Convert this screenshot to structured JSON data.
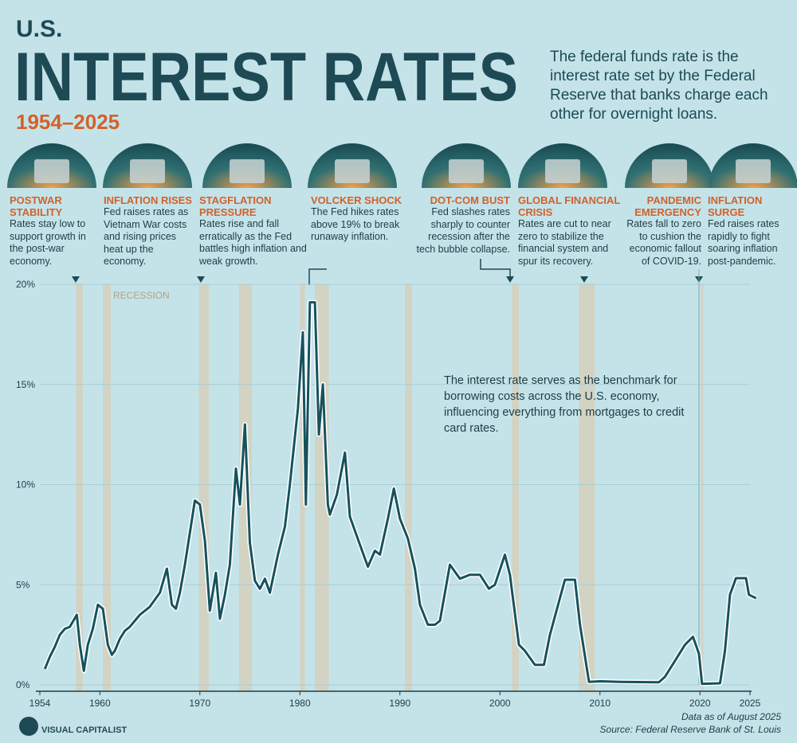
{
  "header": {
    "kicker": "U.S.",
    "title": "INTEREST RATES",
    "period": "1954–2025",
    "description": "The federal funds rate is the interest rate set by the Federal Reserve that banks charge each other for overnight loans."
  },
  "events": [
    {
      "title": "POSTWAR STABILITY",
      "text": "Rates stay low to support growth in the post-war economy."
    },
    {
      "title": "INFLATION RISES",
      "text": "Fed raises rates as Vietnam War costs and rising prices heat up the economy."
    },
    {
      "title": "STAGFLATION PRESSURE",
      "text": "Rates rise and fall erratically as the Fed battles high inflation and weak growth."
    },
    {
      "title": "VOLCKER SHOCK",
      "text": "The Fed hikes rates above 19% to break runaway inflation."
    },
    {
      "title": "DOT-COM BUST",
      "text": "Fed slashes rates sharply to counter recession after the tech bubble collapse."
    },
    {
      "title": "GLOBAL FINANCIAL CRISIS",
      "text": "Rates are cut to near zero to stabilize the financial system and spur its recovery."
    },
    {
      "title": "PANDEMIC EMERGENCY",
      "text": "Rates fall to zero to cushion the economic fallout of COVID-19."
    },
    {
      "title": "INFLATION SURGE",
      "text": "Fed raises rates rapidly to fight soaring inflation post-pandemic."
    }
  ],
  "chart_data": {
    "type": "line",
    "color": "#15525e",
    "grid": true,
    "note": "The interest rate serves as the benchmark for borrowing costs across the U.S. economy, influencing everything from mortgages to credit card rates.",
    "recession_label": "RECESSION",
    "recession_color": "#d6d0bd",
    "recessions": [
      [
        1957.6,
        1958.3
      ],
      [
        1960.3,
        1961.1
      ],
      [
        1969.9,
        1970.9
      ],
      [
        1973.9,
        1975.2
      ],
      [
        1980.0,
        1980.5
      ],
      [
        1981.5,
        1982.9
      ],
      [
        1990.5,
        1991.2
      ],
      [
        2001.2,
        2001.9
      ],
      [
        2007.9,
        2009.5
      ],
      [
        2020.1,
        2020.3
      ]
    ],
    "x": [
      1954.5,
      1955,
      1955.5,
      1956,
      1956.5,
      1957,
      1957.7,
      1958,
      1958.4,
      1958.8,
      1959.3,
      1959.8,
      1960.3,
      1960.8,
      1961.2,
      1961.5,
      1962,
      1962.5,
      1963,
      1963.5,
      1964,
      1965,
      1966,
      1966.7,
      1967.2,
      1967.6,
      1968,
      1968.5,
      1969.5,
      1970,
      1970.5,
      1971,
      1971.6,
      1972,
      1972.5,
      1973,
      1973.6,
      1974,
      1974.5,
      1975,
      1975.5,
      1976,
      1976.5,
      1977,
      1977.8,
      1978.5,
      1979,
      1979.8,
      1980.3,
      1980.6,
      1981,
      1981.5,
      1981.9,
      1982.3,
      1982.8,
      1983,
      1983.7,
      1984.5,
      1985,
      1986,
      1986.8,
      1987.5,
      1988,
      1988.8,
      1989.4,
      1990,
      1990.8,
      1991.5,
      1992,
      1992.8,
      1993.5,
      1994,
      1995,
      1996,
      1997,
      1998,
      1998.9,
      1999.5,
      2000.5,
      2001,
      2001.9,
      2002.5,
      2003.5,
      2004.4,
      2005,
      2006.5,
      2007.5,
      2008,
      2008.9,
      2010,
      2012,
      2015.9,
      2016.5,
      2017.5,
      2018.5,
      2019.3,
      2019.9,
      2020.2,
      2022,
      2022.5,
      2023,
      2023.6,
      2024.6,
      2024.9,
      2025.6
    ],
    "values": [
      0.8,
      1.4,
      1.9,
      2.5,
      2.8,
      2.9,
      3.5,
      2.0,
      0.7,
      2.0,
      2.8,
      4.0,
      3.8,
      2.0,
      1.5,
      1.7,
      2.3,
      2.7,
      2.9,
      3.2,
      3.5,
      3.9,
      4.6,
      5.8,
      4.0,
      3.8,
      4.6,
      6.0,
      9.2,
      9.0,
      7.2,
      3.7,
      5.6,
      3.3,
      4.5,
      6.0,
      10.8,
      9.0,
      13.0,
      7.1,
      5.2,
      4.8,
      5.3,
      4.6,
      6.5,
      7.9,
      10.0,
      13.8,
      17.6,
      9.0,
      19.1,
      19.1,
      12.5,
      15.0,
      9.0,
      8.5,
      9.5,
      11.6,
      8.4,
      7.0,
      5.9,
      6.7,
      6.5,
      8.3,
      9.8,
      8.3,
      7.3,
      5.8,
      4.0,
      3.0,
      3.0,
      3.2,
      6.0,
      5.3,
      5.5,
      5.5,
      4.8,
      5.0,
      6.5,
      5.5,
      2.0,
      1.7,
      1.0,
      1.0,
      2.5,
      5.25,
      5.25,
      3.0,
      0.15,
      0.18,
      0.15,
      0.13,
      0.4,
      1.2,
      2.0,
      2.4,
      1.55,
      0.05,
      0.08,
      1.7,
      4.5,
      5.33,
      5.33,
      4.5,
      4.33
    ],
    "xlim": [
      1954,
      2025
    ],
    "xticks": [
      1954,
      1960,
      1970,
      1980,
      1990,
      2000,
      2010,
      2020,
      2025
    ],
    "ylim": [
      0,
      20
    ],
    "yticks": [
      {
        "value": 0,
        "label": "0%"
      },
      {
        "value": 5,
        "label": "5%"
      },
      {
        "value": 10,
        "label": "10%"
      },
      {
        "value": 15,
        "label": "15%"
      },
      {
        "value": 20,
        "label": "20%"
      }
    ]
  },
  "footer": {
    "as_of": "Data as of August 2025",
    "source": "Source: Federal Reserve Bank of St. Louis",
    "brand": "VISUAL CAPITALIST"
  }
}
